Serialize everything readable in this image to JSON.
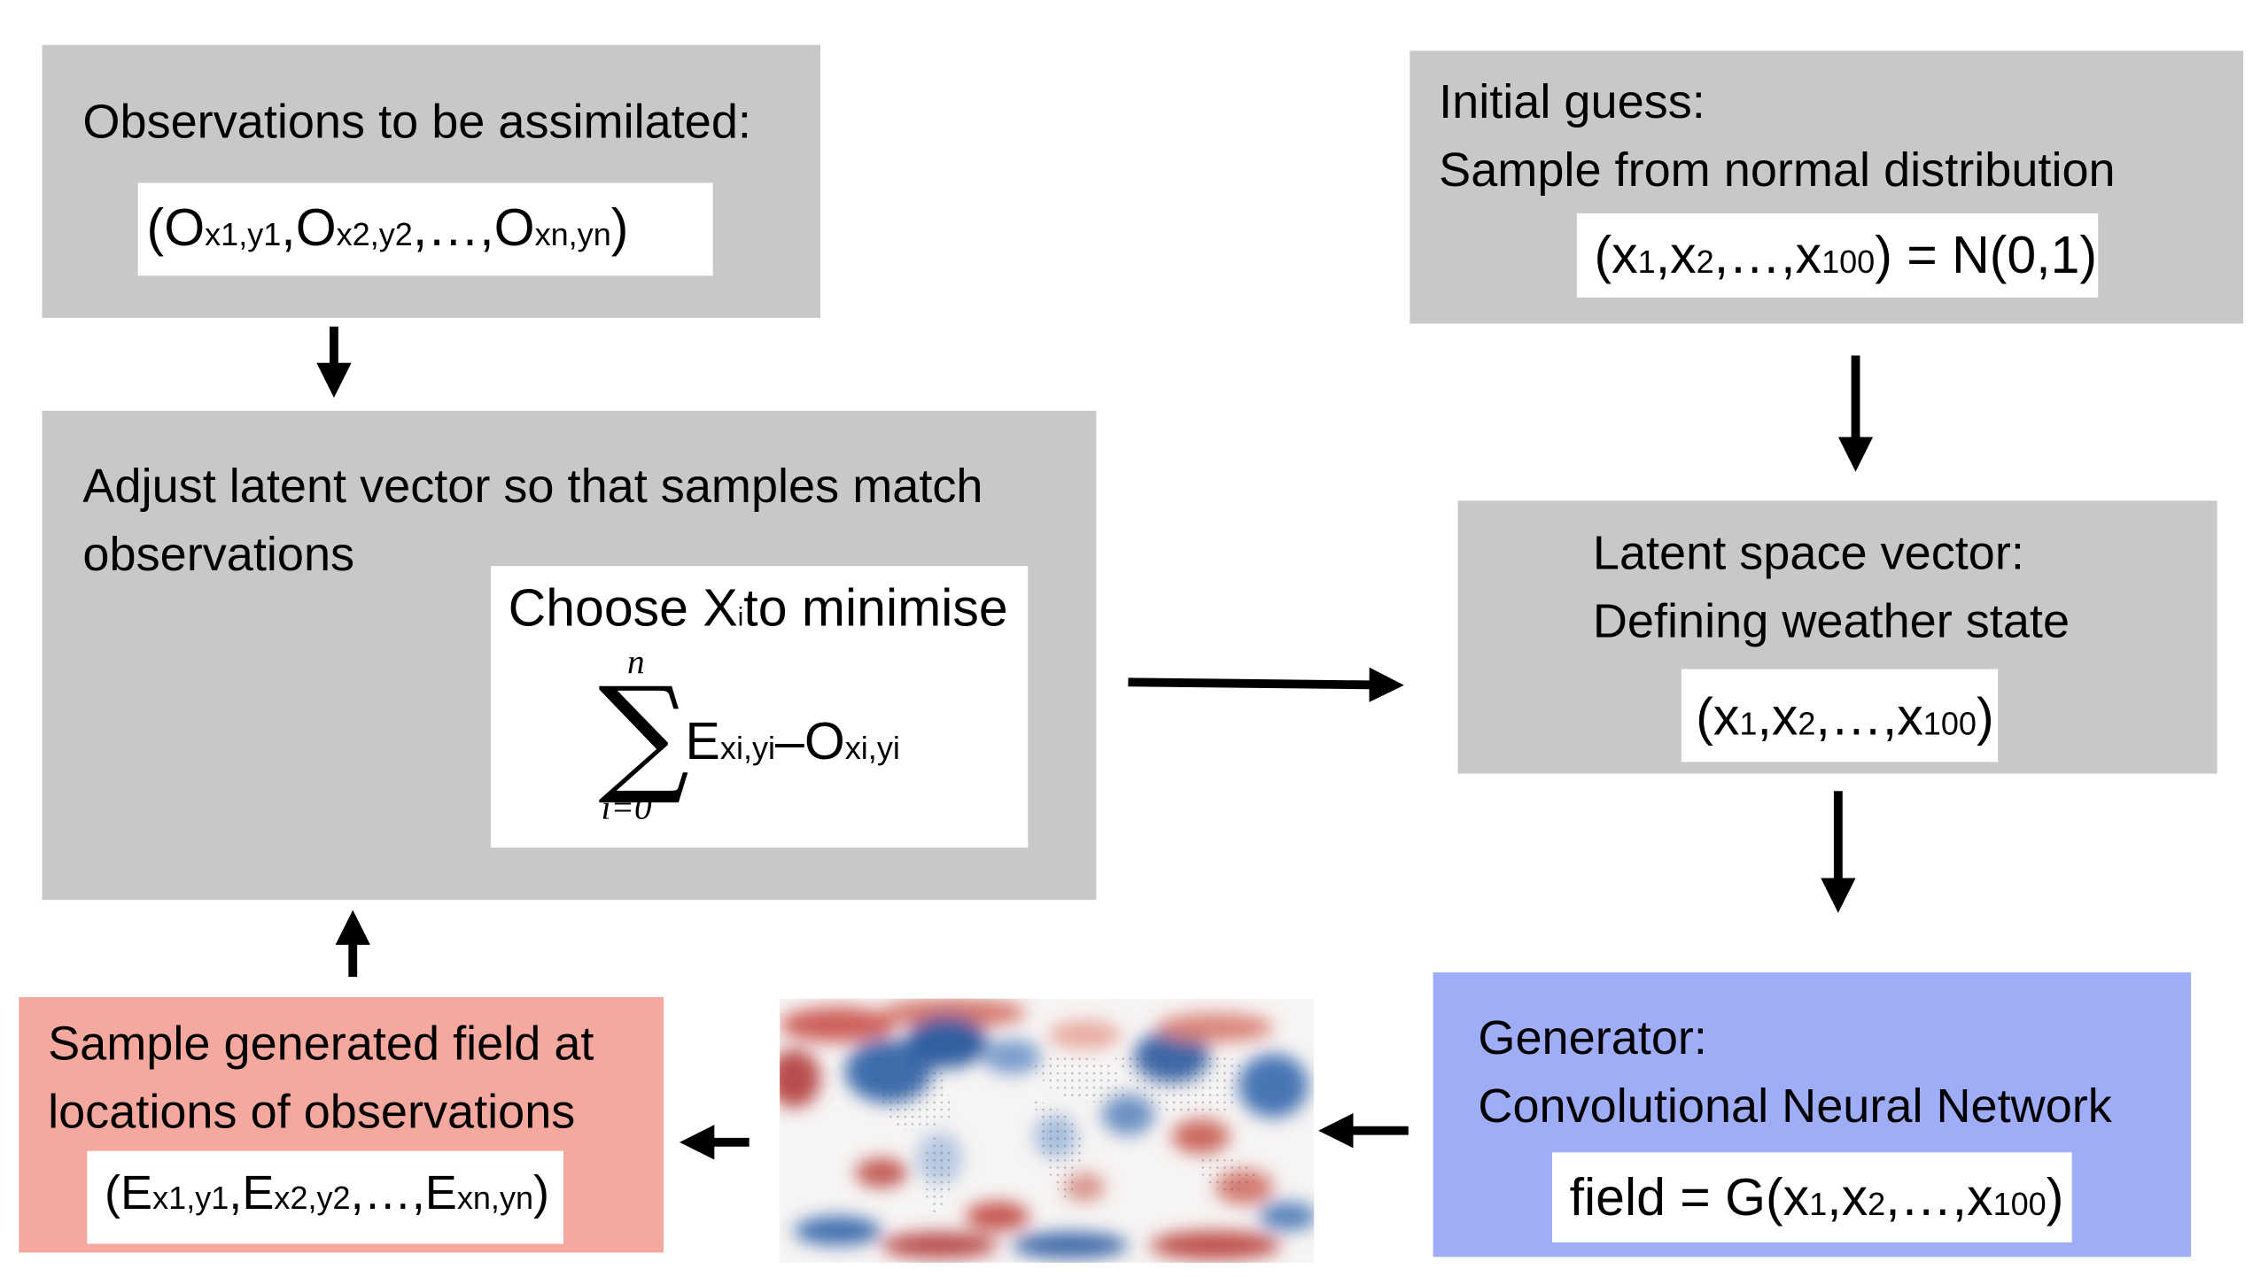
{
  "observations_box": {
    "title": "Observations to be assimilated:",
    "vector": [
      {
        "base": "O",
        "sub": "x1,y1"
      },
      {
        "base": "O",
        "sub": "x2,y2"
      },
      {
        "base": "…",
        "sub": ""
      },
      {
        "base": "O",
        "sub": "xn,yn"
      }
    ]
  },
  "initial_guess_box": {
    "line1": "Initial guess:",
    "line2": "Sample from normal distribution",
    "formula_rhs": ") = N(0,1)"
  },
  "adjust_box": {
    "line1": "Adjust latent vector so that samples match",
    "line2": "observations",
    "choose_label": "Choose X",
    "choose_sub": "i",
    "choose_tail": " to minimise",
    "sum_top": "n",
    "sum_bottom": "i=0",
    "term_E": "E",
    "term_E_sub": "xi,yi",
    "minus": " – ",
    "term_O": "O",
    "term_O_sub": "xi,yi"
  },
  "latent_box": {
    "line1": "Latent space vector:",
    "line2": "Defining weather state"
  },
  "latent_vector": {
    "items": [
      {
        "base": "x",
        "sub": "1"
      },
      {
        "base": "x",
        "sub": "2"
      },
      {
        "base": "…",
        "sub": ""
      },
      {
        "base": "x",
        "sub": "100"
      }
    ]
  },
  "sample_box": {
    "line1": "Sample generated field at",
    "line2": "locations of observations",
    "vector": [
      {
        "base": "E",
        "sub": "x1,y1"
      },
      {
        "base": "E",
        "sub": "x2,y2"
      },
      {
        "base": "…",
        "sub": ""
      },
      {
        "base": "E",
        "sub": "xn,yn"
      }
    ]
  },
  "generator_box": {
    "line1": "Generator:",
    "line2": "Convolutional Neural Network",
    "formula_lhs": "field  = G("
  },
  "colors": {
    "gray_box": "#c8c8c8",
    "red_box": "#f4a89e",
    "blue_box": "#9eadf6",
    "map_red": "#b2182b",
    "map_blue": "#2166ac"
  }
}
